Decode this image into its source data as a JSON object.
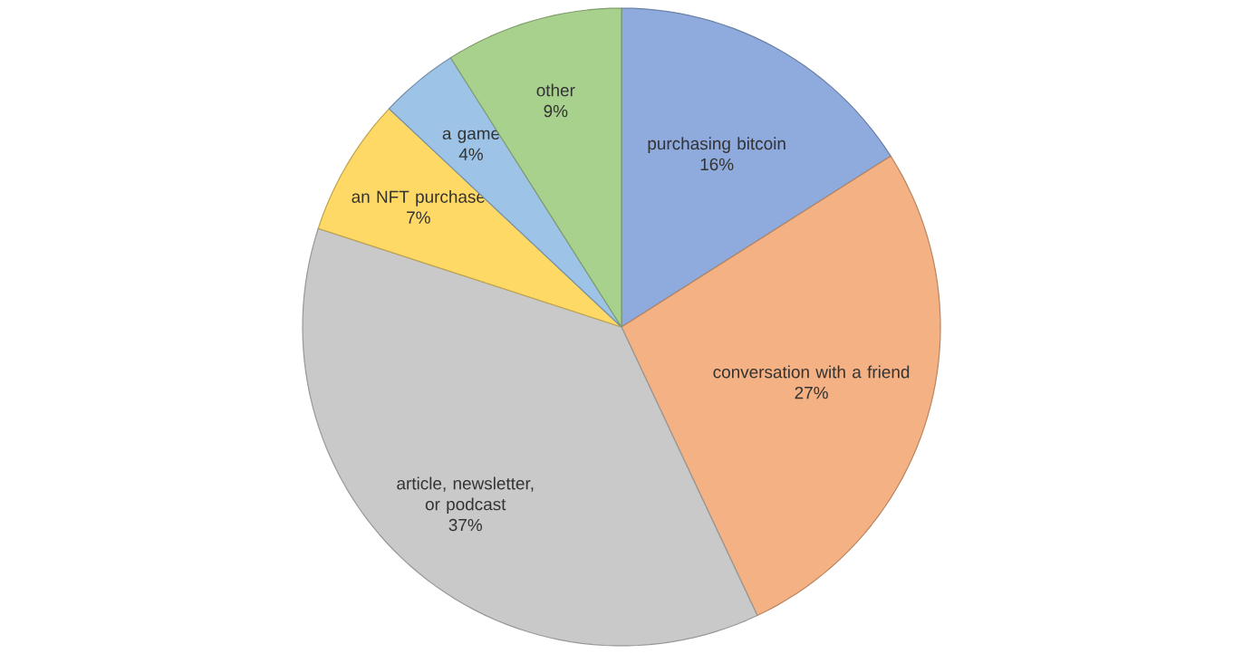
{
  "chart_data": {
    "type": "pie",
    "categories": [
      "purchasing bitcoin",
      "conversation with a friend",
      "article, newsletter, or podcast",
      "an NFT purchase",
      "a game",
      "other"
    ],
    "values": [
      16,
      27,
      37,
      7,
      4,
      9
    ],
    "value_labels": [
      "16%",
      "27%",
      "37%",
      "7%",
      "4%",
      "9%"
    ],
    "colors": [
      "#8faadc",
      "#f4b183",
      "#c9c9c9",
      "#ffd966",
      "#9dc3e6",
      "#a9d18e"
    ]
  }
}
